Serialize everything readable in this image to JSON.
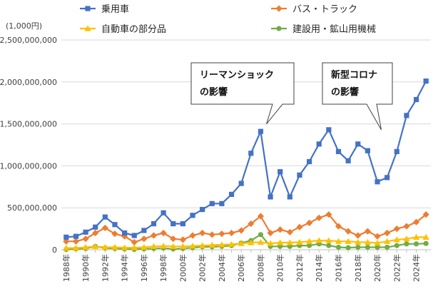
{
  "chart_data": {
    "type": "line",
    "unit_label": "(1,000円)",
    "ylim": [
      0,
      2500000000
    ],
    "y_ticks": [
      {
        "value": 0,
        "label": "0"
      },
      {
        "value": 500000000,
        "label": "500,000,000"
      },
      {
        "value": 1000000000,
        "label": "1,000,000,000"
      },
      {
        "value": 1500000000,
        "label": "1,500,000,000"
      },
      {
        "value": 2000000000,
        "label": "2,000,000,000"
      },
      {
        "value": 2500000000,
        "label": "2,500,000,000"
      }
    ],
    "grid": true,
    "legend_position": "top",
    "x": [
      1988,
      1989,
      1990,
      1991,
      1992,
      1993,
      1994,
      1995,
      1996,
      1997,
      1998,
      1999,
      2000,
      2001,
      2002,
      2003,
      2004,
      2005,
      2006,
      2007,
      2008,
      2009,
      2010,
      2011,
      2012,
      2013,
      2014,
      2015,
      2016,
      2017,
      2018,
      2019,
      2020,
      2021,
      2022,
      2023,
      2024,
      2025
    ],
    "x_tick_labels": [
      {
        "x": 1988,
        "label": "1988年"
      },
      {
        "x": 1990,
        "label": "1990年"
      },
      {
        "x": 1992,
        "label": "1992年"
      },
      {
        "x": 1994,
        "label": "1994年"
      },
      {
        "x": 1996,
        "label": "1996年"
      },
      {
        "x": 1998,
        "label": "1998年"
      },
      {
        "x": 2000,
        "label": "2000年"
      },
      {
        "x": 2002,
        "label": "2002年"
      },
      {
        "x": 2004,
        "label": "2004年"
      },
      {
        "x": 2006,
        "label": "2006年"
      },
      {
        "x": 2008,
        "label": "2008年"
      },
      {
        "x": 2010,
        "label": "2010年"
      },
      {
        "x": 2012,
        "label": "2012年"
      },
      {
        "x": 2014,
        "label": "2014年"
      },
      {
        "x": 2016,
        "label": "2016年"
      },
      {
        "x": 2018,
        "label": "2018年"
      },
      {
        "x": 2020,
        "label": "2020年"
      },
      {
        "x": 2022,
        "label": "2022年"
      },
      {
        "x": 2024,
        "label": "2024年"
      }
    ],
    "series": [
      {
        "name": "乗用車",
        "color": "#4472C4",
        "marker": "square",
        "values": [
          150000000,
          160000000,
          210000000,
          270000000,
          390000000,
          300000000,
          200000000,
          170000000,
          230000000,
          310000000,
          440000000,
          310000000,
          310000000,
          410000000,
          480000000,
          550000000,
          550000000,
          660000000,
          790000000,
          1150000000,
          1410000000,
          630000000,
          930000000,
          630000000,
          890000000,
          1050000000,
          1260000000,
          1430000000,
          1170000000,
          1060000000,
          1260000000,
          1180000000,
          810000000,
          860000000,
          1170000000,
          1600000000,
          1790000000,
          2010000000
        ]
      },
      {
        "name": "バス・トラック",
        "color": "#ED7D31",
        "marker": "diamond",
        "values": [
          100000000,
          100000000,
          130000000,
          200000000,
          260000000,
          190000000,
          160000000,
          90000000,
          130000000,
          170000000,
          200000000,
          130000000,
          120000000,
          170000000,
          200000000,
          180000000,
          190000000,
          200000000,
          230000000,
          310000000,
          400000000,
          200000000,
          240000000,
          210000000,
          270000000,
          320000000,
          380000000,
          420000000,
          280000000,
          220000000,
          170000000,
          220000000,
          160000000,
          200000000,
          250000000,
          280000000,
          330000000,
          420000000
        ]
      },
      {
        "name": "自動車の部分品",
        "color": "#FFC000",
        "marker": "triangle",
        "values": [
          20000000,
          20000000,
          30000000,
          40000000,
          30000000,
          30000000,
          25000000,
          25000000,
          30000000,
          40000000,
          45000000,
          40000000,
          40000000,
          45000000,
          50000000,
          55000000,
          60000000,
          65000000,
          75000000,
          85000000,
          90000000,
          75000000,
          85000000,
          85000000,
          90000000,
          100000000,
          110000000,
          110000000,
          100000000,
          100000000,
          90000000,
          90000000,
          80000000,
          100000000,
          120000000,
          130000000,
          150000000,
          150000000
        ]
      },
      {
        "name": "建設用・鉱山用機械",
        "color": "#70AD47",
        "marker": "circle",
        "values": [
          5000000,
          10000000,
          15000000,
          40000000,
          20000000,
          15000000,
          10000000,
          5000000,
          10000000,
          15000000,
          20000000,
          10000000,
          15000000,
          25000000,
          35000000,
          35000000,
          40000000,
          50000000,
          80000000,
          110000000,
          180000000,
          40000000,
          40000000,
          40000000,
          50000000,
          50000000,
          70000000,
          50000000,
          30000000,
          25000000,
          30000000,
          30000000,
          30000000,
          30000000,
          50000000,
          70000000,
          70000000,
          75000000
        ]
      }
    ],
    "annotations": [
      {
        "text_lines": [
          "リーマンショック",
          "の影響"
        ],
        "anchor_x": 2008.6,
        "anchor_y": 1500000000
      },
      {
        "text_lines": [
          "新型コロナ",
          "の影響"
        ],
        "anchor_x": 2020.4,
        "anchor_y": 1430000000
      }
    ]
  }
}
